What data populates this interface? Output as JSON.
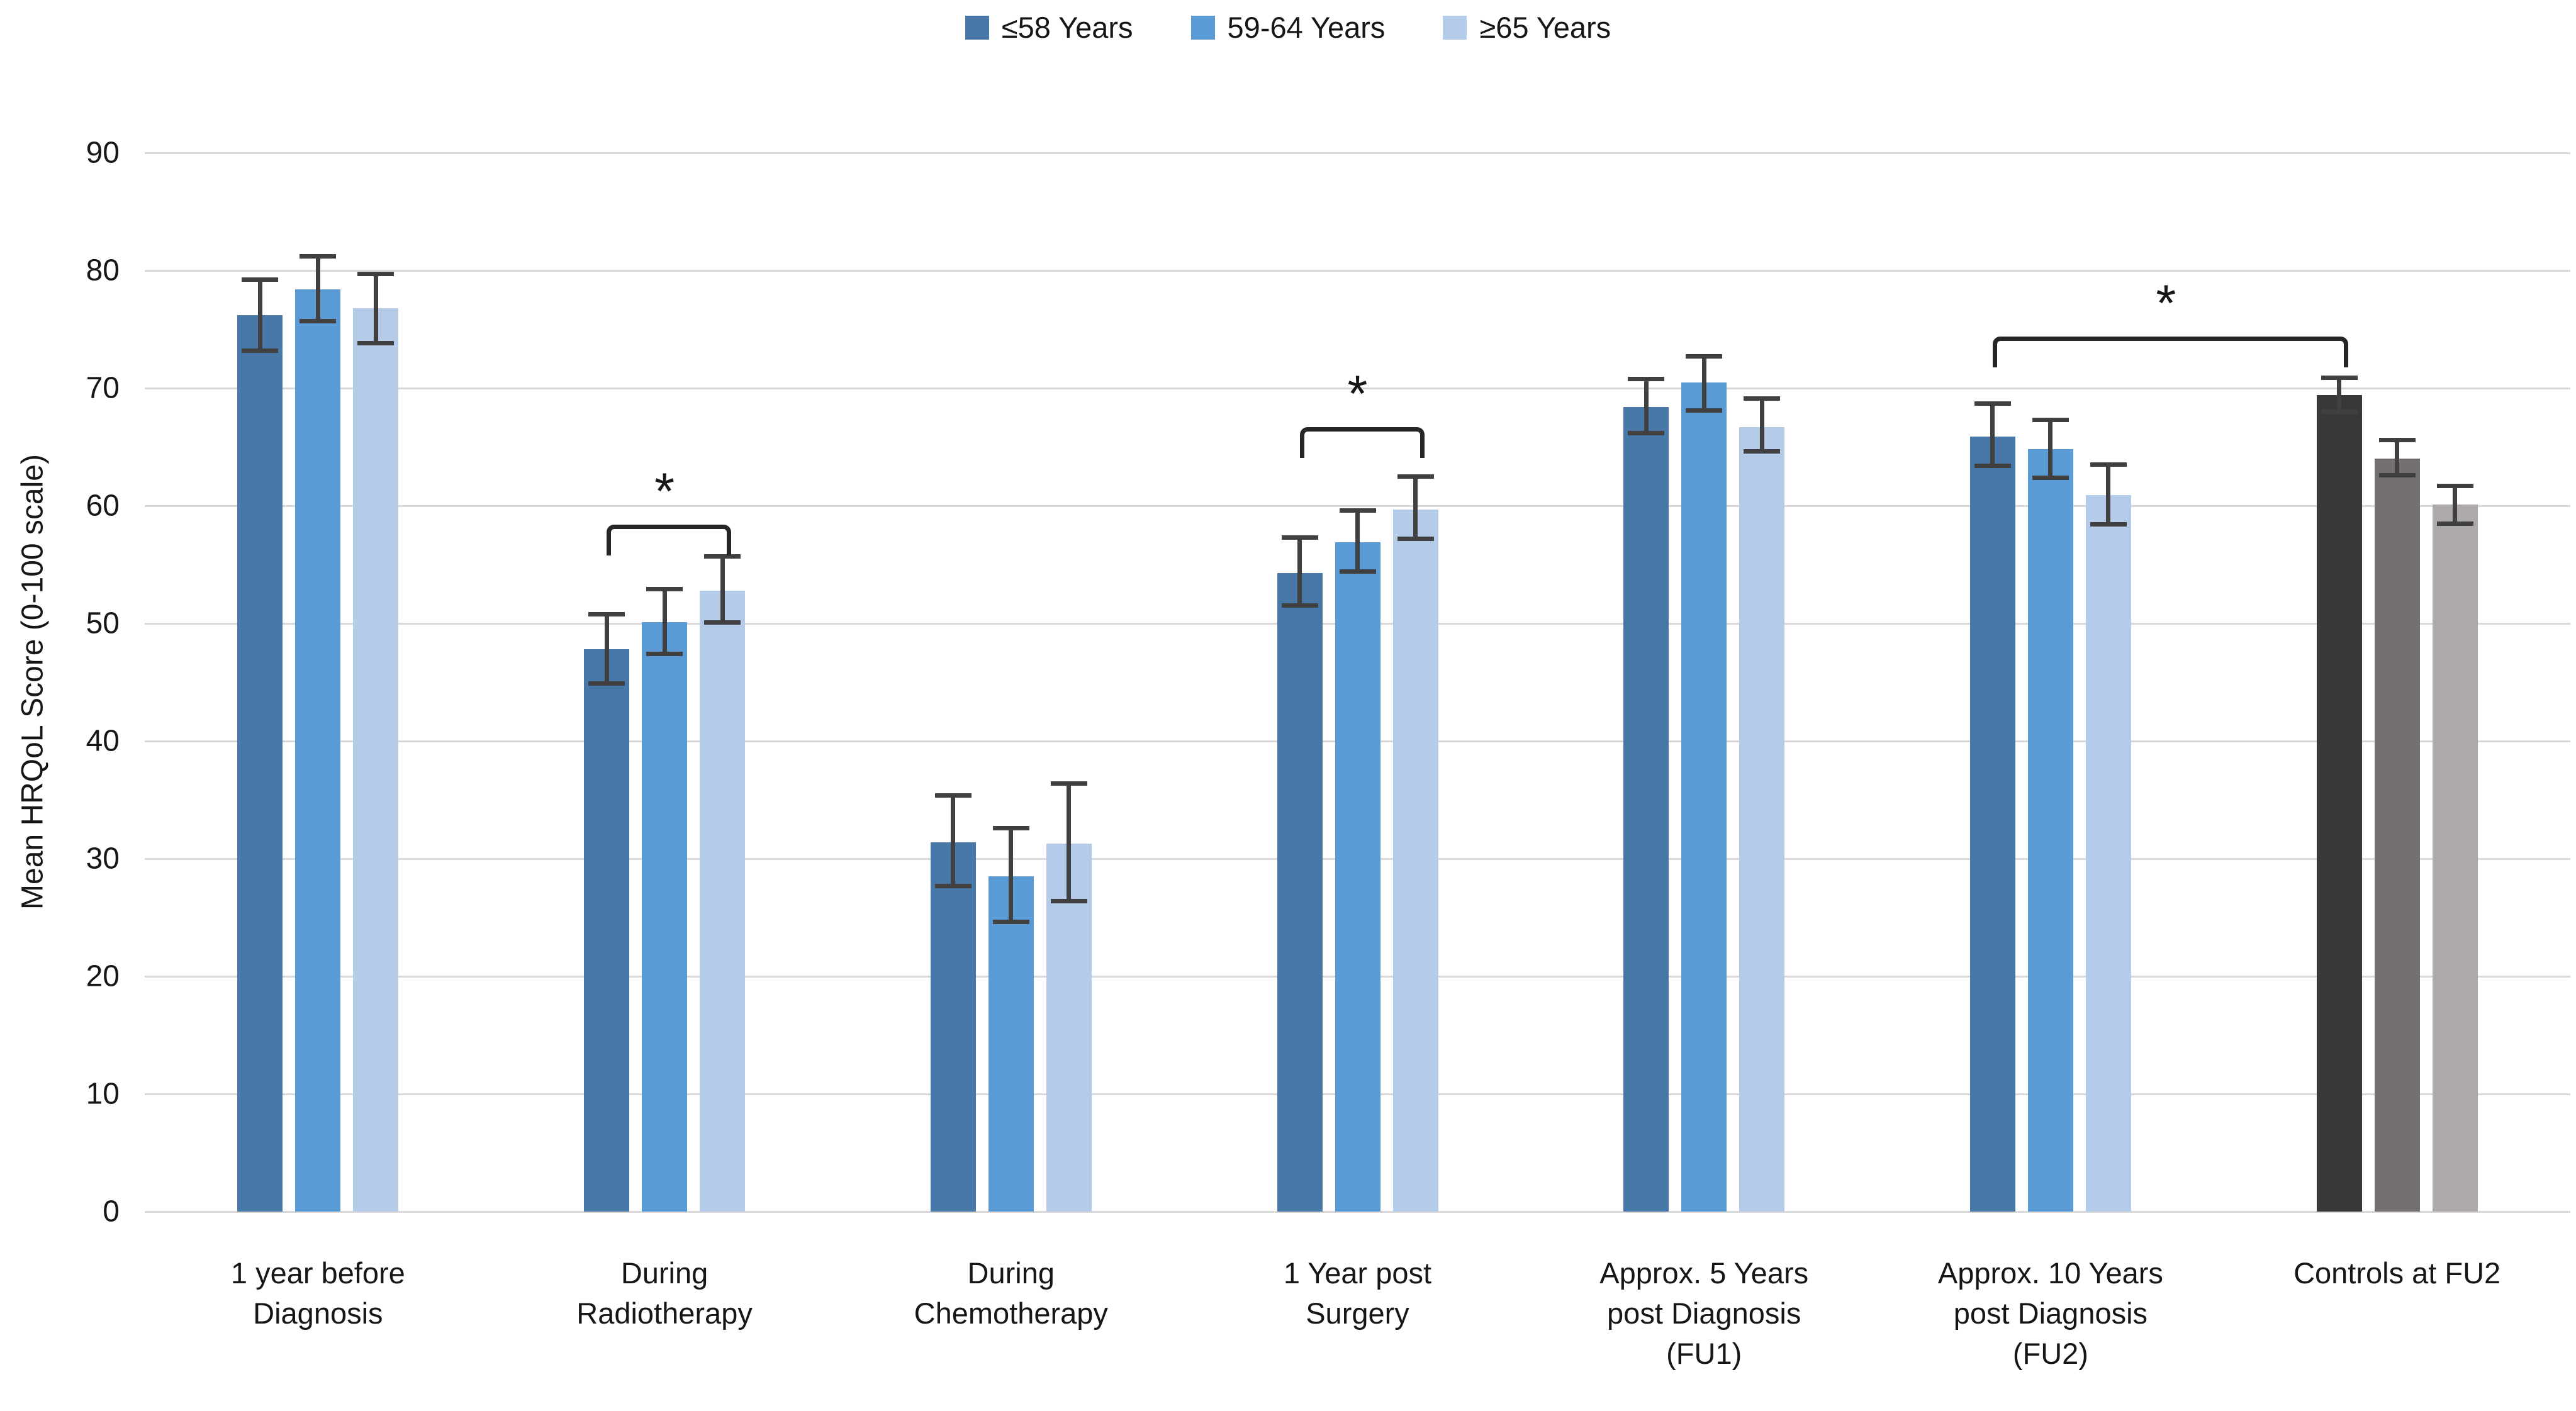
{
  "legend": {
    "items": [
      {
        "label": "≤58 Years"
      },
      {
        "label": "59-64 Years"
      },
      {
        "label": "≥65 Years"
      }
    ]
  },
  "chart_data": {
    "type": "bar",
    "title": "",
    "ylabel": "Mean HRQoL Score (0-100 scale)",
    "ylim": [
      0,
      90
    ],
    "ytick_step": 10,
    "grid": true,
    "legend_position": "top-center",
    "categories": [
      "1 year before\nDiagnosis",
      "During\nRadiotherapy",
      "During\nChemotherapy",
      "1 Year post\nSurgery",
      "Approx. 5 Years\npost Diagnosis\n(FU1)",
      "Approx. 10 Years\npost Diagnosis\n(FU2)",
      "Controls at FU2"
    ],
    "series": [
      {
        "name": "≤58 Years",
        "color": "#4878A8",
        "values": [
          76.2,
          47.8,
          31.4,
          54.3,
          68.4,
          65.9,
          69.4
        ],
        "err_low": [
          73.2,
          44.9,
          27.7,
          51.5,
          66.2,
          63.4,
          68.0
        ],
        "err_high": [
          79.2,
          50.8,
          35.4,
          57.3,
          70.8,
          68.7,
          70.9
        ]
      },
      {
        "name": "59-64 Years",
        "color": "#5B9BD5",
        "values": [
          78.4,
          50.1,
          28.5,
          56.9,
          70.5,
          64.8,
          64.0
        ],
        "err_low": [
          75.7,
          47.4,
          24.6,
          54.4,
          68.1,
          62.4,
          62.6
        ],
        "err_high": [
          81.2,
          52.9,
          32.6,
          59.6,
          72.7,
          67.3,
          65.6
        ]
      },
      {
        "name": "≥65 Years",
        "color": "#B4CBE9",
        "values": [
          76.8,
          52.8,
          31.3,
          59.7,
          66.7,
          60.9,
          60.1
        ],
        "err_low": [
          73.8,
          50.1,
          26.4,
          57.2,
          64.6,
          58.4,
          58.5
        ],
        "err_high": [
          79.7,
          55.7,
          36.4,
          62.5,
          69.1,
          63.5,
          61.7
        ]
      }
    ],
    "category_color_overrides": {
      "6": [
        "#393737",
        "#747070",
        "#AEAAAA"
      ]
    },
    "error_bar_color": "#404040",
    "gridline_color": "#D9D9D9",
    "significance_brackets": [
      {
        "from_category": 1,
        "from_bar": 0,
        "to_category": 1,
        "to_bar": 2,
        "height": 58.0,
        "label": "*"
      },
      {
        "from_category": 3,
        "from_bar": 0,
        "to_category": 3,
        "to_bar": 2,
        "height": 66.3,
        "label": "*"
      },
      {
        "from_category": 5,
        "from_bar": 0,
        "to_category": 6,
        "to_bar": 0,
        "height": 74.0,
        "label": "*"
      }
    ]
  }
}
